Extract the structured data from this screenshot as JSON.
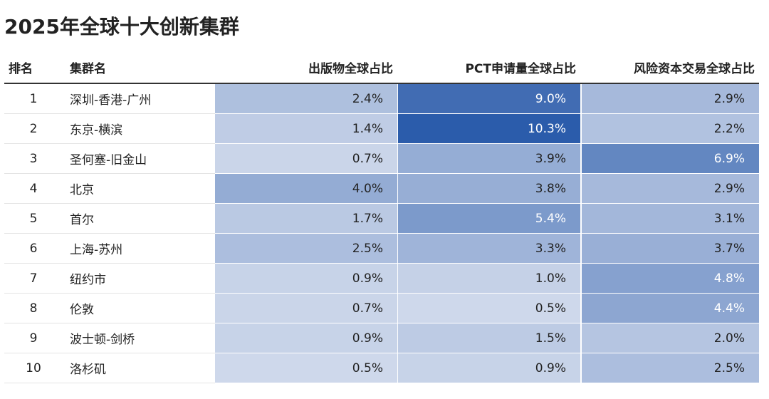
{
  "header": {
    "title": "2025年全球十大创新集群"
  },
  "table": {
    "columns": [
      "排名",
      "集群名",
      "出版物全球占比",
      "PCT申请量全球占比",
      "风险资本交易全球占比"
    ],
    "rows": [
      [
        "1",
        "深圳-香港-广州",
        "2.4%",
        "9.0%",
        "2.9%"
      ],
      [
        "2",
        "东京-横滨",
        "1.4%",
        "10.3%",
        "2.2%"
      ],
      [
        "3",
        "圣何塞-旧金山",
        "0.7%",
        "3.9%",
        "6.9%"
      ],
      [
        "4",
        "北京",
        "4.0%",
        "3.8%",
        "2.9%"
      ],
      [
        "5",
        "首尔",
        "1.7%",
        "5.4%",
        "3.1%"
      ],
      [
        "6",
        "上海-苏州",
        "2.5%",
        "3.3%",
        "3.7%"
      ],
      [
        "7",
        "纽约市",
        "0.9%",
        "1.0%",
        "4.8%"
      ],
      [
        "8",
        "伦敦",
        "0.7%",
        "0.5%",
        "4.4%"
      ],
      [
        "9",
        "波士顿-剑桥",
        "0.9%",
        "1.5%",
        "2.0%"
      ],
      [
        "10",
        "洛杉矶",
        "0.5%",
        "0.9%",
        "2.5%"
      ]
    ]
  }
}
